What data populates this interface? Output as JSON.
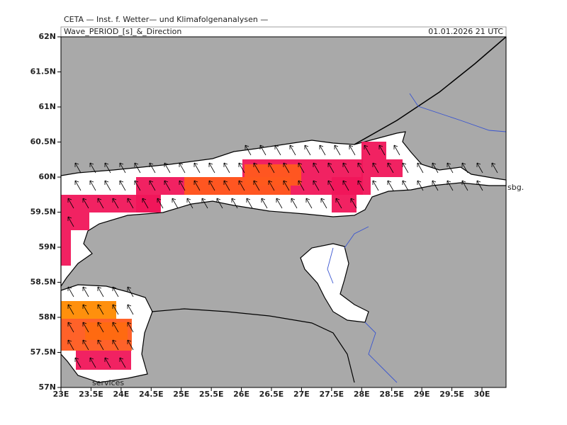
{
  "header": {
    "institute": "CETA — Inst. f. Wetter— und Klimafolgenanalysen —",
    "field": "Wave_PERIOD_[s]_&_Direction",
    "valid_time": "01.01.2026 21 UTC"
  },
  "map": {
    "lon_ticks": [
      "23E",
      "23.5E",
      "24E",
      "24.5E",
      "25E",
      "25.5E",
      "26E",
      "26.5E",
      "27E",
      "27.5E",
      "28E",
      "28.5E",
      "29E",
      "29.5E",
      "30E"
    ],
    "lat_ticks": [
      "62N",
      "61.5N",
      "61N",
      "60.5N",
      "60N",
      "59.5N",
      "59N",
      "58.5N",
      "58N",
      "57.5N",
      "57N"
    ],
    "labels": [
      "sbg.",
      "services"
    ]
  }
}
